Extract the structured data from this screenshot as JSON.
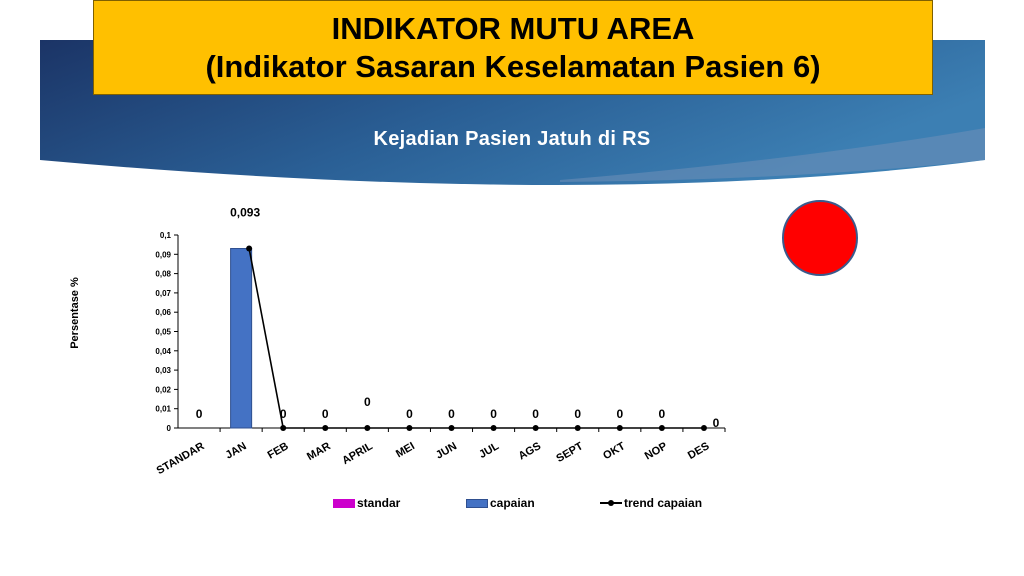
{
  "slide": {
    "title_line1": "INDIKATOR MUTU AREA",
    "title_line2": "(Indikator Sasaran Keselamatan Pasien 6)",
    "subtitle": "Kejadian Pasien Jatuh di RS"
  },
  "colors": {
    "title_bg": "#ffc000",
    "banner_dark": "#1f3c6e",
    "banner_light": "#2f6fa0",
    "standar": "#cc00cc",
    "capaian": "#4472c4",
    "trend": "#000000",
    "indicator": "#ff0000"
  },
  "chart_data": {
    "type": "bar",
    "ylabel": "Persentase %",
    "ylim": [
      0,
      0.1
    ],
    "yticks": [
      "0",
      "0,01",
      "0,02",
      "0,03",
      "0,04",
      "0,05",
      "0,06",
      "0,07",
      "0,08",
      "0,09",
      "0,1"
    ],
    "categories": [
      "STANDAR",
      "JAN",
      "FEB",
      "MAR",
      "APRIL",
      "MEI",
      "JUN",
      "JUL",
      "AGS",
      "SEPT",
      "OKT",
      "NOP",
      "DES"
    ],
    "series": [
      {
        "name": "standar",
        "kind": "bar",
        "values": [
          0,
          null,
          null,
          null,
          null,
          null,
          null,
          null,
          null,
          null,
          null,
          null,
          null
        ]
      },
      {
        "name": "capaian",
        "kind": "bar",
        "values": [
          null,
          0.093,
          0,
          0,
          0,
          0,
          0,
          0,
          0,
          0,
          0,
          0,
          0
        ]
      },
      {
        "name": "trend capaian",
        "kind": "line",
        "values": [
          null,
          0.093,
          0,
          0,
          0,
          0,
          0,
          0,
          0,
          0,
          0,
          0,
          0
        ]
      }
    ],
    "data_labels": [
      "0",
      "0,093",
      "0",
      "0",
      "0",
      "0",
      "0",
      "0",
      "0",
      "0",
      "0",
      "0",
      "0"
    ],
    "legend_position": "bottom",
    "legend": [
      "standar",
      "capaian",
      "trend capaian"
    ]
  }
}
